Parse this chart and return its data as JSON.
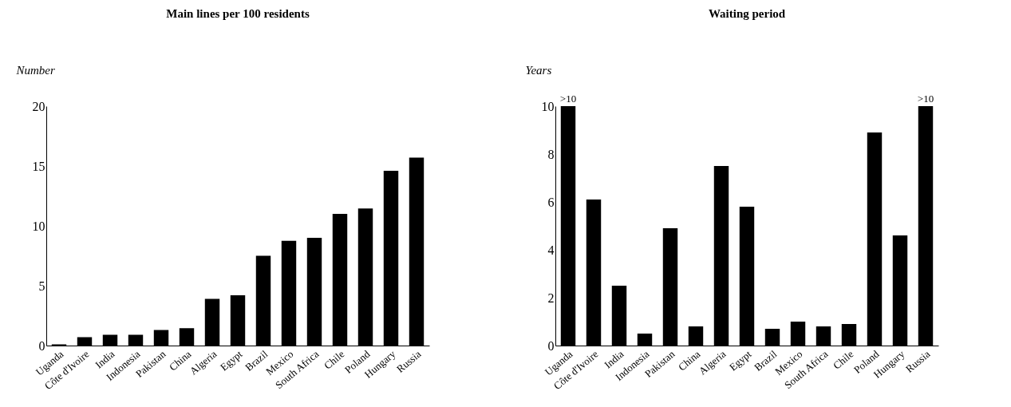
{
  "chart_data": [
    {
      "type": "bar",
      "title": "Main lines per 100 residents",
      "ylabel": "Number",
      "categories": [
        "Uganda",
        "Côte d'Ivoire",
        "India",
        "Indonesia",
        "Pakistan",
        "China",
        "Algeria",
        "Egypt",
        "Brazil",
        "Mexico",
        "South Africa",
        "Chile",
        "Poland",
        "Hungary",
        "Russia"
      ],
      "values": [
        0.1,
        0.7,
        0.9,
        0.9,
        1.3,
        1.45,
        3.9,
        4.2,
        7.5,
        8.75,
        9.0,
        11.0,
        11.45,
        14.6,
        15.7
      ],
      "color": "#000000",
      "ylim": [
        0,
        20
      ],
      "yticks": [
        0,
        5,
        10,
        15,
        20
      ]
    },
    {
      "type": "bar",
      "title": "Waiting period",
      "ylabel": "Years",
      "categories": [
        "Uganda",
        "Côte d'Ivoire",
        "India",
        "Indonesia",
        "Pakistan",
        "China",
        "Algeria",
        "Egypt",
        "Brazil",
        "Mexico",
        "South Africa",
        "Chile",
        "Poland",
        "Hungary",
        "Russia"
      ],
      "values": [
        10,
        6.1,
        2.5,
        0.5,
        4.9,
        0.8,
        7.5,
        5.8,
        0.7,
        1.0,
        0.8,
        0.9,
        8.9,
        4.6,
        10
      ],
      "value_labels": [
        ">10",
        null,
        null,
        null,
        null,
        null,
        null,
        null,
        null,
        null,
        null,
        null,
        null,
        null,
        ">10"
      ],
      "color": "#000000",
      "ylim": [
        0,
        10
      ],
      "yticks": [
        0,
        2,
        4,
        6,
        8,
        10
      ]
    }
  ]
}
